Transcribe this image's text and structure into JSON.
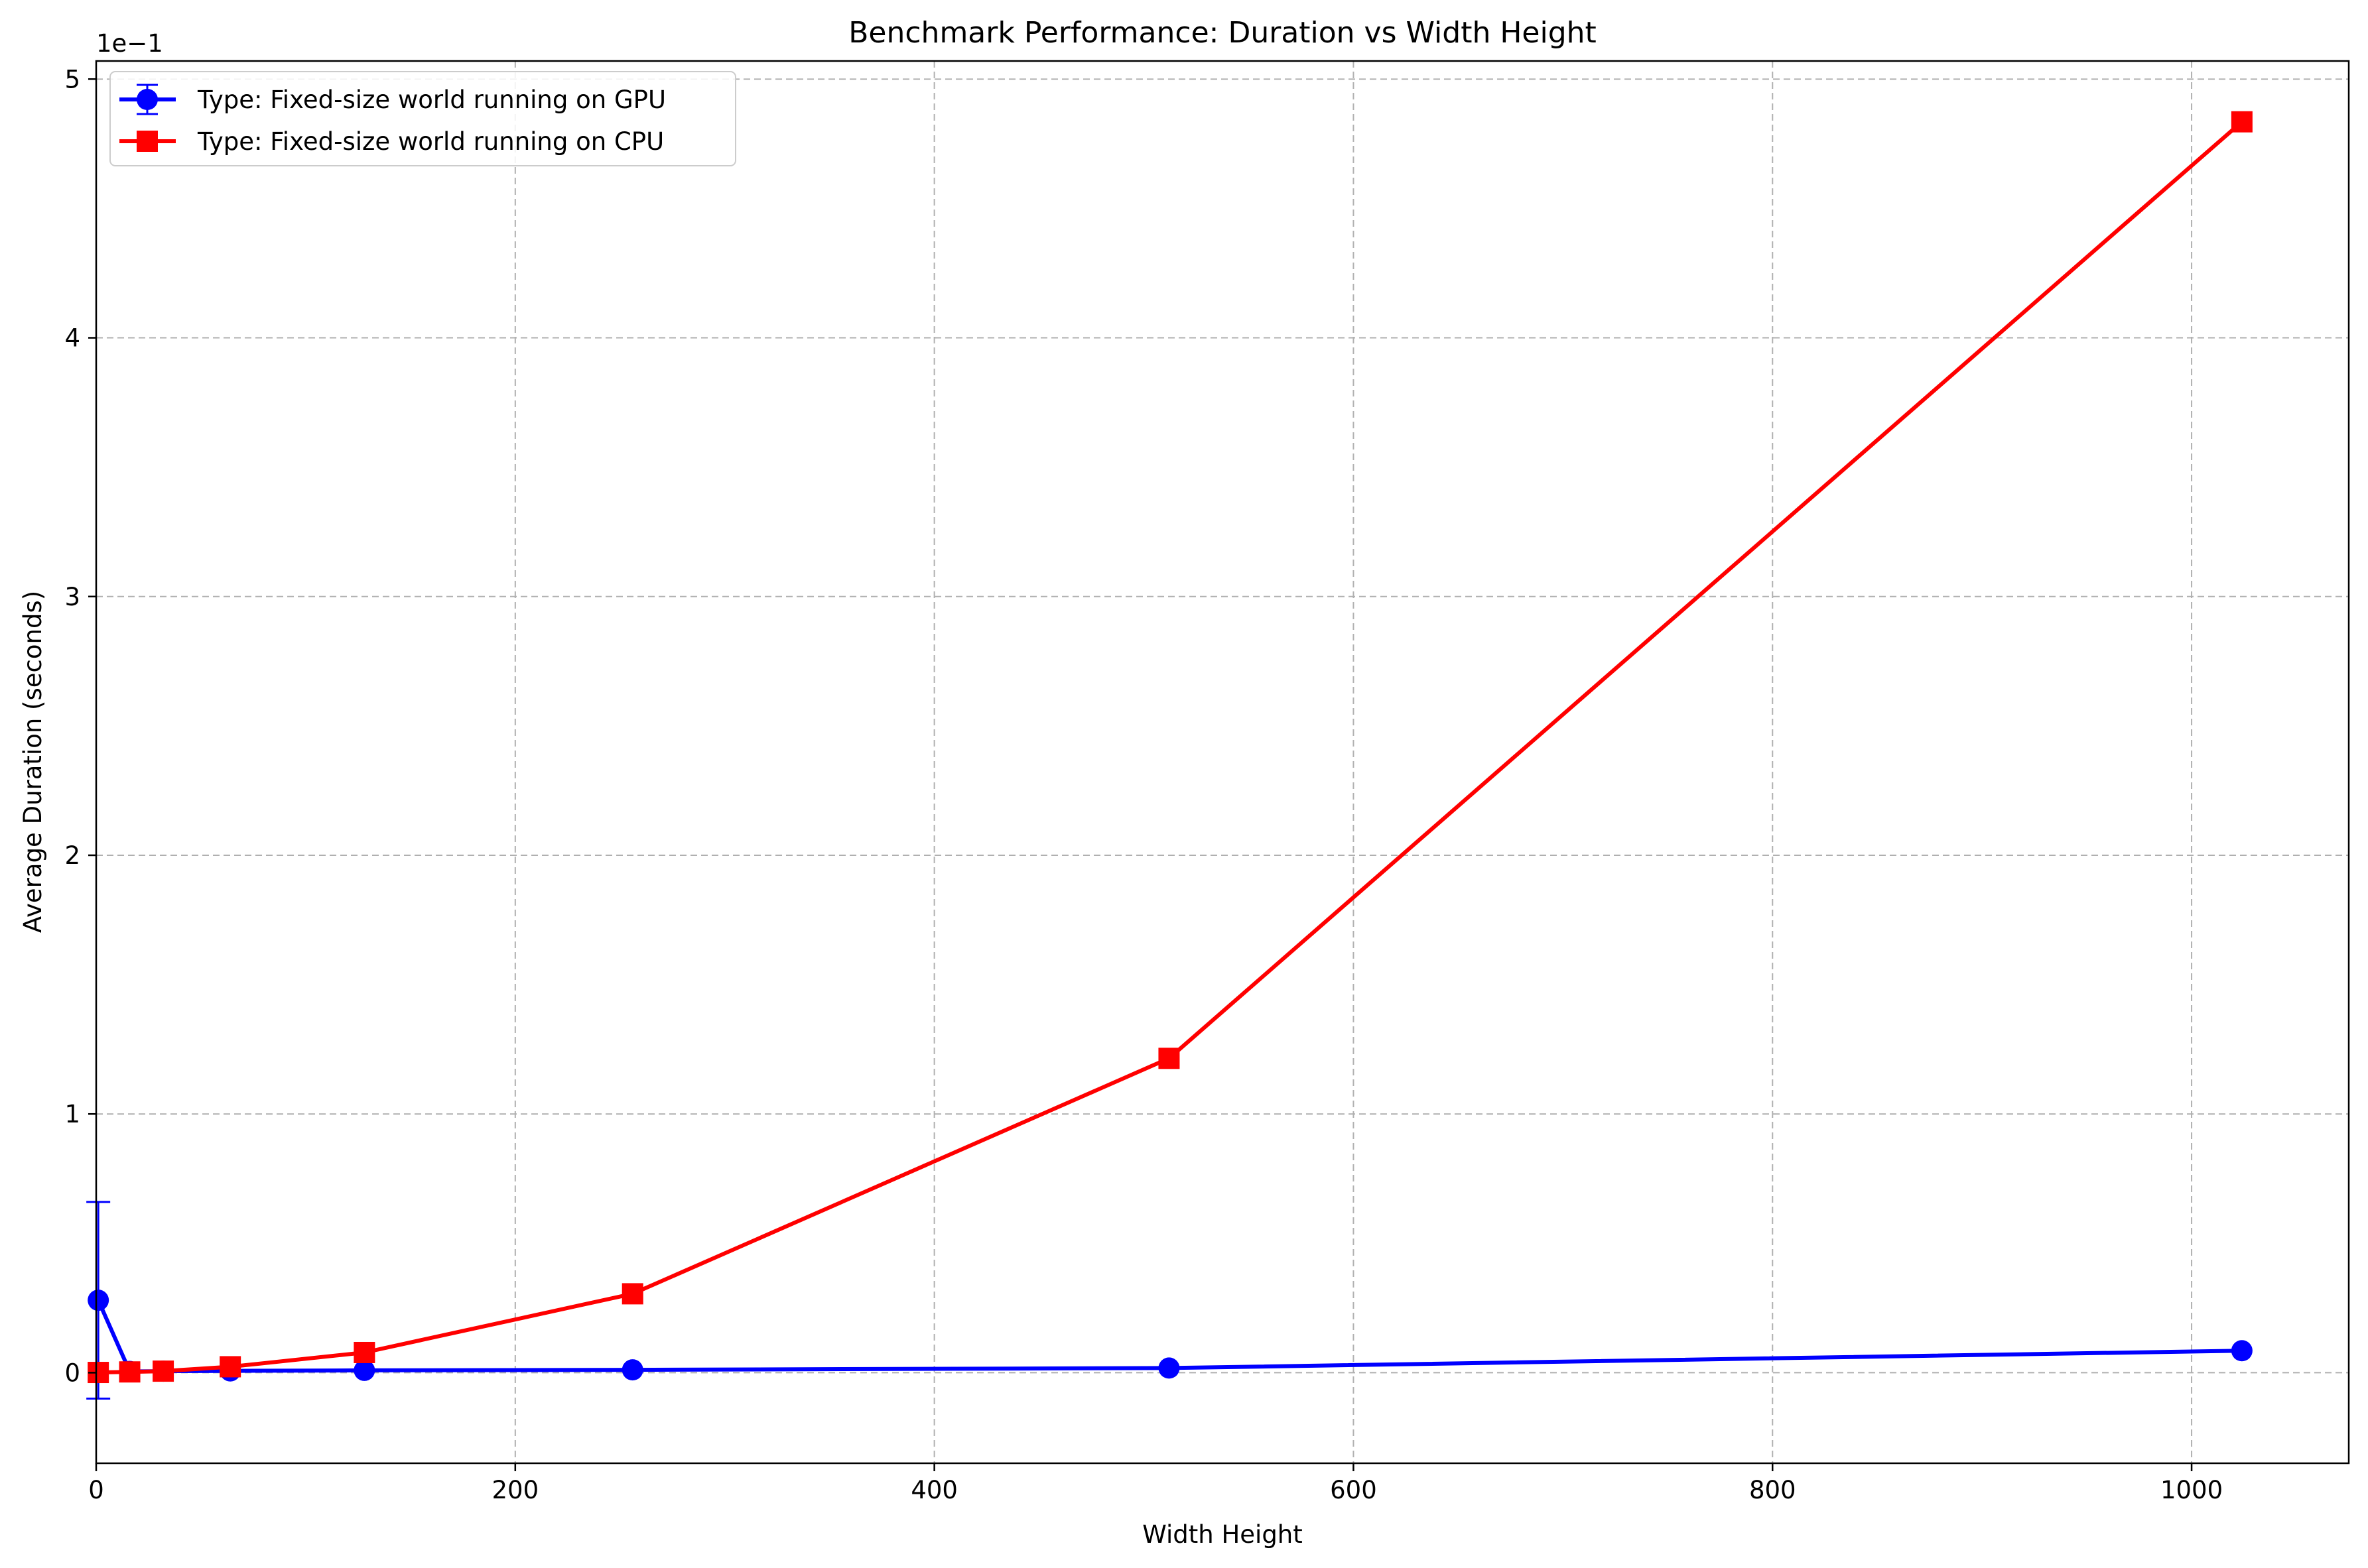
{
  "chart_data": {
    "type": "line",
    "title": "Benchmark Performance: Duration vs Width Height",
    "xlabel": "Width Height",
    "ylabel": "Average Duration (seconds)",
    "offset_text": "1e−1",
    "xlim": [
      0,
      1075
    ],
    "ylim": [
      -0.035,
      0.507
    ],
    "x_ticks": [
      0,
      200,
      400,
      600,
      800,
      1000
    ],
    "y_ticks": [
      0,
      1,
      2,
      3,
      4,
      5
    ],
    "y_tick_scale": 0.1,
    "grid": true,
    "legend_position": "top-left",
    "series": [
      {
        "name": "Type: Fixed-size world running on GPU",
        "color": "#0000ff",
        "marker": "circle",
        "x": [
          1,
          16,
          32,
          64,
          128,
          256,
          512,
          1024
        ],
        "y": [
          0.028,
          0.0005,
          0.0006,
          0.0007,
          0.0009,
          0.0011,
          0.0018,
          0.0085
        ],
        "error": [
          0.038,
          0,
          0,
          0,
          0,
          0,
          0,
          0
        ]
      },
      {
        "name": "Type: Fixed-size world running on CPU",
        "color": "#ff0000",
        "marker": "square",
        "x": [
          1,
          16,
          32,
          64,
          128,
          256,
          512,
          1024
        ],
        "y": [
          0.0001,
          0.0003,
          0.0006,
          0.0023,
          0.0078,
          0.0305,
          0.1215,
          0.4835
        ],
        "error": [
          0,
          0,
          0,
          0,
          0,
          0,
          0,
          0
        ]
      }
    ]
  }
}
